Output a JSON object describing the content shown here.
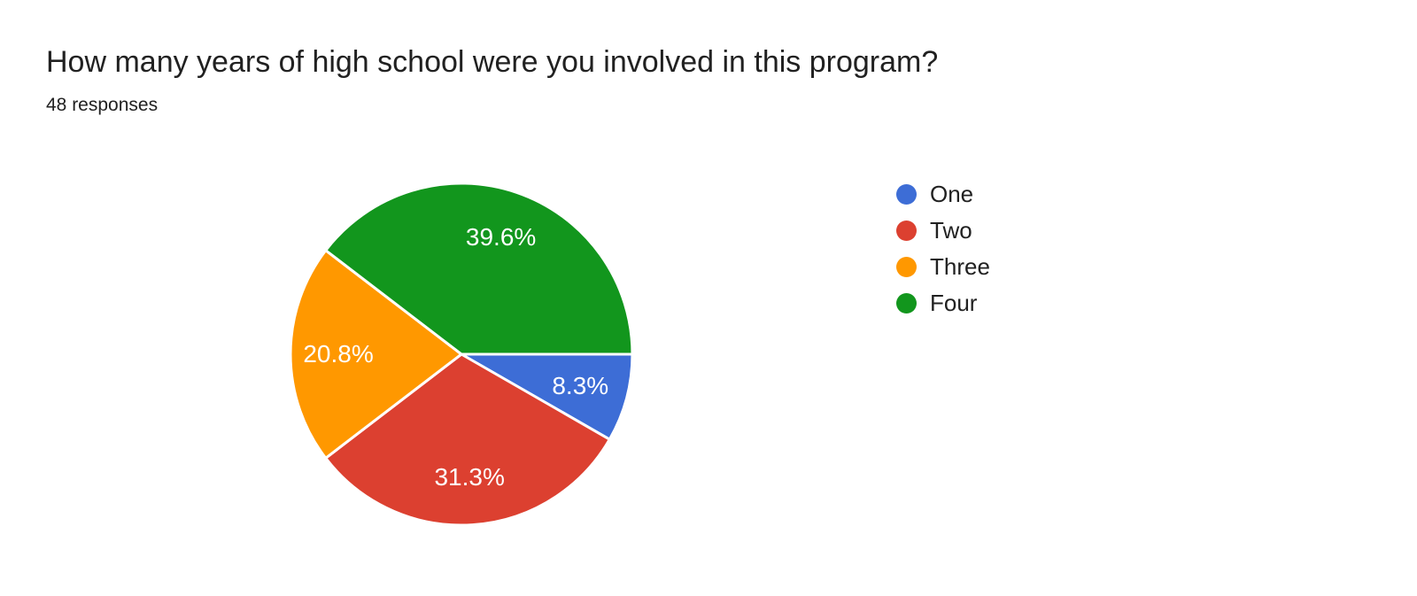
{
  "chart_data": {
    "type": "pie",
    "title": "How many years of high school were you involved in this program?",
    "subtitle": "48 responses",
    "total_responses": 48,
    "categories": [
      "One",
      "Two",
      "Three",
      "Four"
    ],
    "values": [
      8.3,
      31.3,
      20.8,
      39.6
    ],
    "slice_labels": [
      "8.3%",
      "31.3%",
      "20.8%",
      "39.6%"
    ],
    "colors": [
      "#3D6DD6",
      "#DC4030",
      "#FF9800",
      "#12961D"
    ],
    "slice_label_color": "#ffffff",
    "slice_border_color": "#ffffff",
    "background": "#ffffff",
    "legend_position": "right",
    "start_angle_deg": 0,
    "direction": "clockwise"
  }
}
